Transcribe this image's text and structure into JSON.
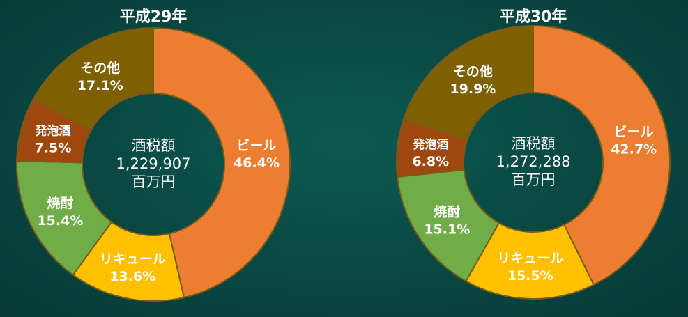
{
  "chart_data": [
    {
      "type": "pie",
      "title": "平成29年",
      "center": {
        "label": "酒税額",
        "value": "1,229,907",
        "unit": "百万円"
      },
      "categories": [
        "ビール",
        "リキュール",
        "焼酎",
        "発泡酒",
        "その他"
      ],
      "values": [
        46.4,
        13.6,
        15.4,
        7.5,
        17.1
      ],
      "value_labels": [
        "46.4%",
        "13.6%",
        "15.4%",
        "7.5%",
        "17.1%"
      ],
      "colors": [
        "#ED7D31",
        "#FFC000",
        "#70AD47",
        "#9E480E",
        "#7F6000"
      ]
    },
    {
      "type": "pie",
      "title": "平成30年",
      "center": {
        "label": "酒税額",
        "value": "1,272,288",
        "unit": "百万円"
      },
      "categories": [
        "ビール",
        "リキュール",
        "焼酎",
        "発泡酒",
        "その他"
      ],
      "values": [
        42.7,
        15.5,
        15.1,
        6.8,
        19.9
      ],
      "value_labels": [
        "42.7%",
        "15.5%",
        "15.1%",
        "6.8%",
        "19.9%"
      ],
      "colors": [
        "#ED7D31",
        "#FFC000",
        "#70AD47",
        "#9E480E",
        "#7F6000"
      ]
    }
  ]
}
